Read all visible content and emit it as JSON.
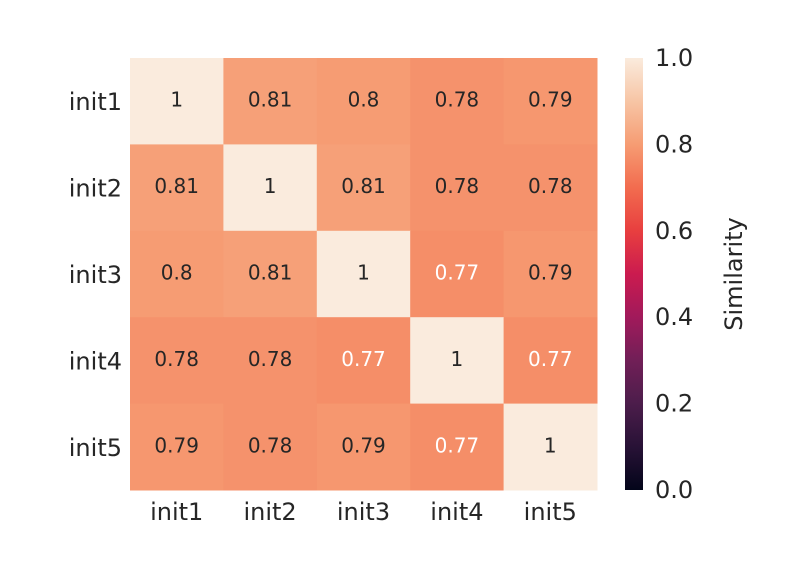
{
  "chart_data": {
    "type": "heatmap",
    "x": [
      "init1",
      "init2",
      "init3",
      "init4",
      "init5"
    ],
    "y": [
      "init1",
      "init2",
      "init3",
      "init4",
      "init5"
    ],
    "values": [
      [
        1,
        0.81,
        0.8,
        0.78,
        0.79
      ],
      [
        0.81,
        1,
        0.81,
        0.78,
        0.78
      ],
      [
        0.8,
        0.81,
        1,
        0.77,
        0.79
      ],
      [
        0.78,
        0.78,
        0.77,
        1,
        0.77
      ],
      [
        0.79,
        0.78,
        0.79,
        0.77,
        1
      ]
    ],
    "colormap": "rocket",
    "colorbar_label": "Similarity",
    "clim": [
      0,
      1
    ],
    "cticks": [
      {
        "value": 0,
        "label": "0.0"
      },
      {
        "value": 0.2,
        "label": "0.2"
      },
      {
        "value": 0.4,
        "label": "0.4"
      },
      {
        "value": 0.6,
        "label": "0.6"
      },
      {
        "value": 0.8,
        "label": "0.8"
      },
      {
        "value": 1,
        "label": "1.0"
      }
    ]
  }
}
